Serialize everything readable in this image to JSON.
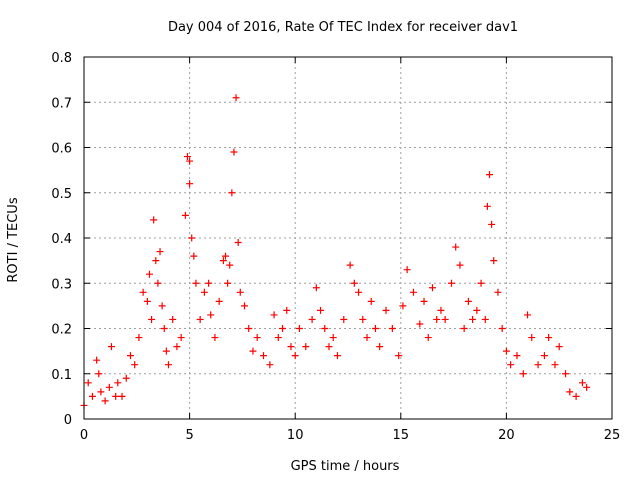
{
  "chart_data": {
    "type": "scatter",
    "title": "Day 004 of 2016, Rate Of TEC Index for receiver dav1",
    "xlabel": "GPS time / hours",
    "ylabel": "ROTI / TECUs",
    "xlim": [
      0,
      25
    ],
    "ylim": [
      0,
      0.8
    ],
    "xticks": [
      0,
      5,
      10,
      15,
      20,
      25
    ],
    "xtick_labels": [
      "0",
      "5",
      "10",
      "15",
      "20",
      "25"
    ],
    "yticks": [
      0,
      0.1,
      0.2,
      0.3,
      0.4,
      0.5,
      0.6,
      0.7,
      0.8
    ],
    "ytick_labels": [
      "0",
      "0.1",
      "0.2",
      "0.3",
      "0.4",
      "0.5",
      "0.6",
      "0.7",
      "0.8"
    ],
    "grid": true,
    "marker": "+",
    "marker_color": "#ff0000",
    "series": [
      {
        "x": [
          0.0,
          0.2,
          0.4,
          0.6,
          0.7,
          0.8,
          1.0,
          1.2,
          1.3,
          1.5,
          1.6,
          1.8,
          2.0,
          2.2,
          2.4,
          2.6,
          2.8,
          3.0,
          3.1,
          3.2,
          3.3,
          3.4,
          3.5,
          3.6,
          3.7,
          3.8,
          3.9,
          4.0,
          4.2,
          4.4,
          4.6,
          4.8,
          4.9,
          5.0,
          5.0,
          5.1,
          5.2,
          5.3,
          5.5,
          5.7,
          5.9,
          6.0,
          6.2,
          6.4,
          6.6,
          6.7,
          6.8,
          6.9,
          7.0,
          7.1,
          7.2,
          7.3,
          7.4,
          7.6,
          7.8,
          8.0,
          8.2,
          8.5,
          8.8,
          9.0,
          9.2,
          9.4,
          9.6,
          9.8,
          10.0,
          10.2,
          10.5,
          10.8,
          11.0,
          11.2,
          11.4,
          11.6,
          11.8,
          12.0,
          12.3,
          12.6,
          12.8,
          13.0,
          13.2,
          13.4,
          13.6,
          13.8,
          14.0,
          14.3,
          14.6,
          14.9,
          15.1,
          15.3,
          15.6,
          15.9,
          16.1,
          16.3,
          16.5,
          16.7,
          16.9,
          17.1,
          17.4,
          17.6,
          17.8,
          18.0,
          18.2,
          18.4,
          18.6,
          18.8,
          19.0,
          19.1,
          19.2,
          19.3,
          19.4,
          19.6,
          19.8,
          20.0,
          20.2,
          20.5,
          20.8,
          21.0,
          21.2,
          21.5,
          21.8,
          22.0,
          22.3,
          22.5,
          22.8,
          23.0,
          23.3,
          23.6,
          23.8
        ],
        "y": [
          0.03,
          0.08,
          0.05,
          0.13,
          0.1,
          0.06,
          0.04,
          0.07,
          0.16,
          0.05,
          0.08,
          0.05,
          0.09,
          0.14,
          0.12,
          0.18,
          0.28,
          0.26,
          0.32,
          0.22,
          0.44,
          0.35,
          0.3,
          0.37,
          0.25,
          0.2,
          0.15,
          0.12,
          0.22,
          0.16,
          0.18,
          0.45,
          0.58,
          0.57,
          0.52,
          0.4,
          0.36,
          0.3,
          0.22,
          0.28,
          0.3,
          0.23,
          0.18,
          0.26,
          0.35,
          0.36,
          0.3,
          0.34,
          0.5,
          0.59,
          0.71,
          0.39,
          0.28,
          0.25,
          0.2,
          0.15,
          0.18,
          0.14,
          0.12,
          0.23,
          0.18,
          0.2,
          0.24,
          0.16,
          0.14,
          0.2,
          0.16,
          0.22,
          0.29,
          0.24,
          0.2,
          0.16,
          0.18,
          0.14,
          0.22,
          0.34,
          0.3,
          0.28,
          0.22,
          0.18,
          0.26,
          0.2,
          0.16,
          0.24,
          0.2,
          0.14,
          0.25,
          0.33,
          0.28,
          0.21,
          0.26,
          0.18,
          0.29,
          0.22,
          0.24,
          0.22,
          0.3,
          0.38,
          0.34,
          0.2,
          0.26,
          0.22,
          0.24,
          0.3,
          0.22,
          0.47,
          0.54,
          0.43,
          0.35,
          0.28,
          0.2,
          0.15,
          0.12,
          0.14,
          0.1,
          0.23,
          0.18,
          0.12,
          0.14,
          0.18,
          0.12,
          0.16,
          0.1,
          0.06,
          0.05,
          0.08,
          0.07
        ]
      }
    ]
  }
}
